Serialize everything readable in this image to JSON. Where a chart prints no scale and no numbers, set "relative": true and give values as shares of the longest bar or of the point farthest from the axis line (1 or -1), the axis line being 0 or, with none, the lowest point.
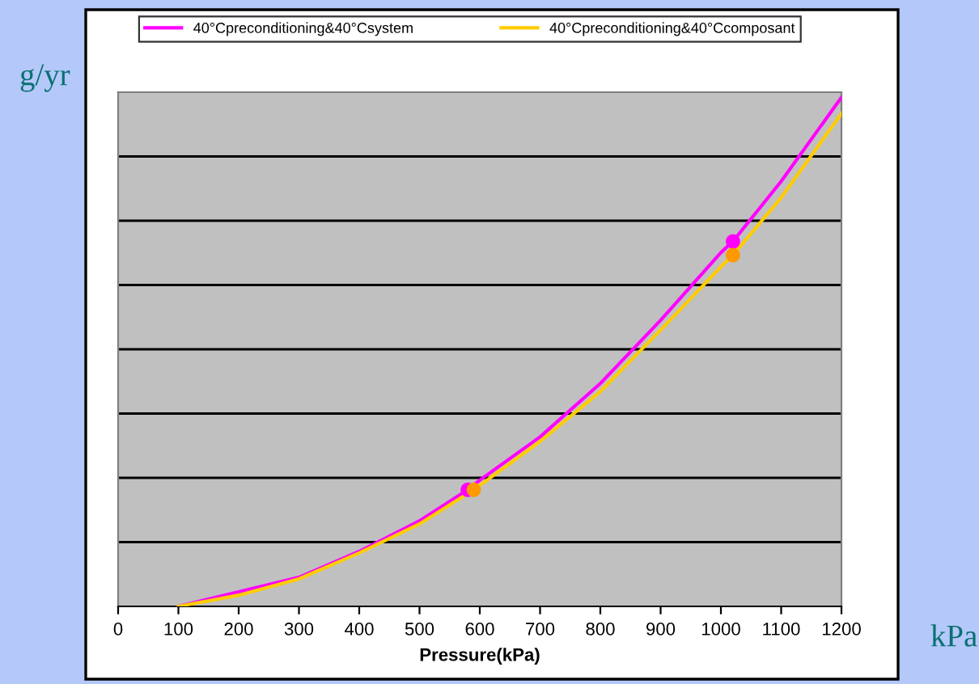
{
  "chart_data": {
    "type": "line",
    "relative": true,
    "xlabel": "Pressure(kPa)",
    "xlim": [
      0,
      1200
    ],
    "xticks": [
      0,
      100,
      200,
      300,
      400,
      500,
      600,
      700,
      800,
      900,
      1000,
      1100,
      1200
    ],
    "grid": "y",
    "legend": "top",
    "marker": "none",
    "annotations": [
      "g/yr",
      "kPa"
    ],
    "series": [
      {
        "name": "40°Cpreconditioning&40°Csystem",
        "color": "#ff00ff",
        "x": [
          100,
          300,
          400,
          500,
          580,
          600,
          700,
          800,
          900,
          1000,
          1020,
          1100,
          1200
        ],
        "values": [
          0,
          0.057,
          0.108,
          0.168,
          0.229,
          0.248,
          0.333,
          0.438,
          0.562,
          0.695,
          0.717,
          0.835,
          1
        ]
      },
      {
        "name": "40°Cpreconditioning&40°Ccomposant",
        "color": "#ffcc00",
        "x": [
          100,
          200,
          300,
          400,
          500,
          590,
          700,
          800,
          900,
          1000,
          1020,
          1100,
          1200
        ],
        "values": [
          0,
          0.022,
          0.054,
          0.105,
          0.162,
          0.229,
          0.324,
          0.422,
          0.543,
          0.667,
          0.69,
          0.803,
          0.968
        ]
      },
      {
        "type": "scatter",
        "marker": "circle",
        "color": "#ff00ff",
        "x": [
          580,
          1020
        ],
        "values": [
          0.229,
          0.717
        ]
      },
      {
        "type": "scatter",
        "marker": "circle",
        "color": "#ff9900",
        "x": [
          590,
          1020
        ],
        "values": [
          0.229,
          0.69
        ]
      }
    ]
  }
}
